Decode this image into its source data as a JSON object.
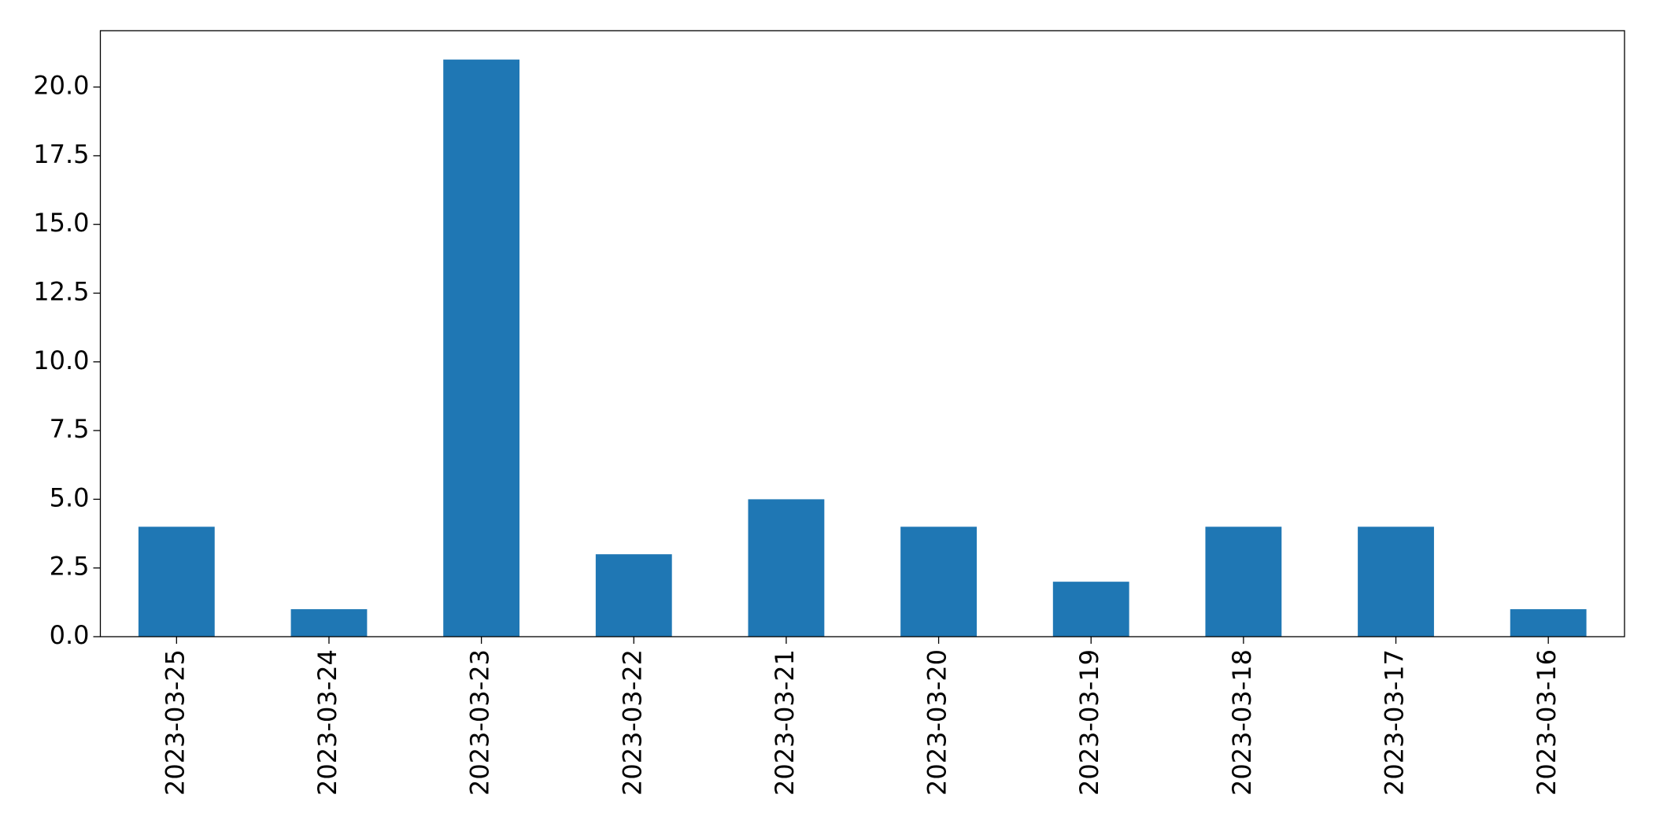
{
  "chart_data": {
    "type": "bar",
    "categories": [
      "2023-03-25",
      "2023-03-24",
      "2023-03-23",
      "2023-03-22",
      "2023-03-21",
      "2023-03-20",
      "2023-03-19",
      "2023-03-18",
      "2023-03-17",
      "2023-03-16"
    ],
    "values": [
      4,
      1,
      21,
      3,
      5,
      4,
      2,
      4,
      4,
      1
    ],
    "color": "#1f77b4",
    "ylim": [
      0,
      22.05
    ],
    "yticks": [
      {
        "value": 0,
        "label": "0.0"
      },
      2.5,
      {
        "value": 5,
        "label": "5.0"
      },
      7.5,
      {
        "value": 10,
        "label": "10.0"
      },
      12.5,
      {
        "value": 15,
        "label": "15.0"
      },
      17.5,
      {
        "value": 20,
        "label": "20.0"
      }
    ],
    "grid": false
  }
}
